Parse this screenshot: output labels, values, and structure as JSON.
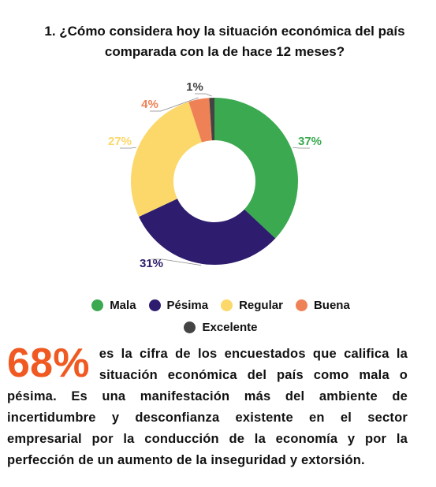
{
  "chart_data": {
    "type": "donut",
    "title": "1.  ¿Cómo considera hoy la situación económica del país comparada con la de hace 12 meses?",
    "categories": [
      "Mala",
      "Pésima",
      "Regular",
      "Buena",
      "Excelente"
    ],
    "values": [
      37,
      31,
      27,
      4,
      1
    ],
    "value_labels": [
      "37%",
      "31%",
      "27%",
      "4%",
      "1%"
    ],
    "colors": [
      "#3aa94f",
      "#2e1c6e",
      "#fcd86a",
      "#ef8156",
      "#444444"
    ],
    "callout": "68%",
    "callout_text": "es la cifra de los encuestados que califica la situación económica del país como mala o pésima. Es una manifestación más del ambiente de incertidumbre y desconfianza existente en el sector empresarial por la conducción de la economía y por la perfección de un aumento de la inseguridad y extorsión."
  }
}
